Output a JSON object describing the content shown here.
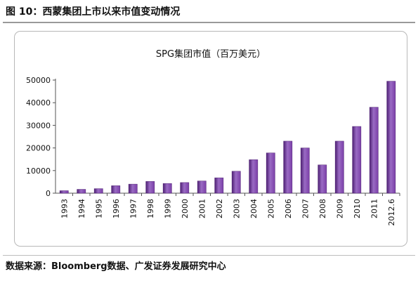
{
  "figure": {
    "title": "图 10：西蒙集团上市以来市值变动情况",
    "source": "数据来源：Bloomberg数据、广发证券发展研究中心"
  },
  "colors": {
    "bar": "#7b3fa8",
    "bar_light": "#9a6bc4",
    "bar_dark": "#4d1f72",
    "axis": "#555555"
  },
  "chart_data": {
    "type": "bar",
    "title": "SPG集团市值（百万美元）",
    "categories": [
      "1993",
      "1994",
      "1995",
      "1996",
      "1997",
      "1998",
      "1999",
      "2000",
      "2001",
      "2002",
      "2003",
      "2004",
      "2005",
      "2006",
      "2007",
      "2008",
      "2009",
      "2010",
      "2011",
      "2012.6"
    ],
    "values": [
      1100,
      1700,
      2000,
      3300,
      4000,
      5200,
      4300,
      4700,
      5400,
      6800,
      9700,
      14800,
      17800,
      23000,
      20000,
      12500,
      23000,
      29500,
      38000,
      49500
    ],
    "ylim": [
      0,
      50000
    ],
    "yticks": [
      0,
      10000,
      20000,
      30000,
      40000,
      50000
    ],
    "grid": false,
    "legend": "none"
  }
}
